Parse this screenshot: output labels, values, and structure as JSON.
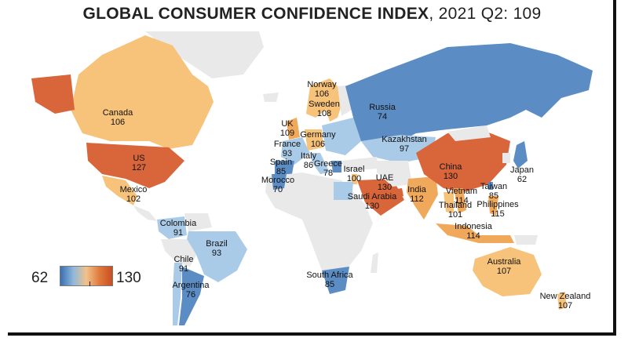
{
  "title": {
    "bold": "GLOBAL CONSUMER CONFIDENCE INDEX",
    "rest": ", 2021 Q2: 109"
  },
  "legend": {
    "min": "62",
    "max": "130",
    "colors": [
      "#3a6fb0",
      "#8fb8dc",
      "#f0c28a",
      "#e07a3c",
      "#c84f22"
    ]
  },
  "colors": {
    "low": "#5b8cc4",
    "midlow": "#a9cbe8",
    "mid": "#f7c27a",
    "midhigh": "#f0a85a",
    "high": "#d9653a",
    "nodata": "#e9e9e9",
    "ocean": "#ffffff"
  },
  "countries": [
    {
      "name": "Canada",
      "value": "106"
    },
    {
      "name": "US",
      "value": "127"
    },
    {
      "name": "Mexico",
      "value": "102"
    },
    {
      "name": "Colombia",
      "value": "91"
    },
    {
      "name": "Brazil",
      "value": "93"
    },
    {
      "name": "Chile",
      "value": "91"
    },
    {
      "name": "Argentina",
      "value": "76"
    },
    {
      "name": "Norway",
      "value": "106"
    },
    {
      "name": "Sweden",
      "value": "108"
    },
    {
      "name": "UK",
      "value": "109"
    },
    {
      "name": "Germany",
      "value": "106"
    },
    {
      "name": "France",
      "value": "93"
    },
    {
      "name": "Spain",
      "value": "85"
    },
    {
      "name": "Italy",
      "value": "86"
    },
    {
      "name": "Greece",
      "value": "78"
    },
    {
      "name": "Morocco",
      "value": "70"
    },
    {
      "name": "Israel",
      "value": "100"
    },
    {
      "name": "Russia",
      "value": "74"
    },
    {
      "name": "Kazakhstan",
      "value": "97"
    },
    {
      "name": "UAE",
      "value": "130"
    },
    {
      "name": "Saudi Arabia",
      "value": "130"
    },
    {
      "name": "India",
      "value": "112"
    },
    {
      "name": "China",
      "value": "130"
    },
    {
      "name": "Japan",
      "value": "62"
    },
    {
      "name": "Taiwan",
      "value": "85"
    },
    {
      "name": "Vietnam",
      "value": "114"
    },
    {
      "name": "Thailand",
      "value": "101"
    },
    {
      "name": "Philippines",
      "value": "115"
    },
    {
      "name": "Indonesia",
      "value": "114"
    },
    {
      "name": "South Africa",
      "value": "85"
    },
    {
      "name": "Australia",
      "value": "107"
    },
    {
      "name": "New Zealand",
      "value": "107"
    }
  ]
}
